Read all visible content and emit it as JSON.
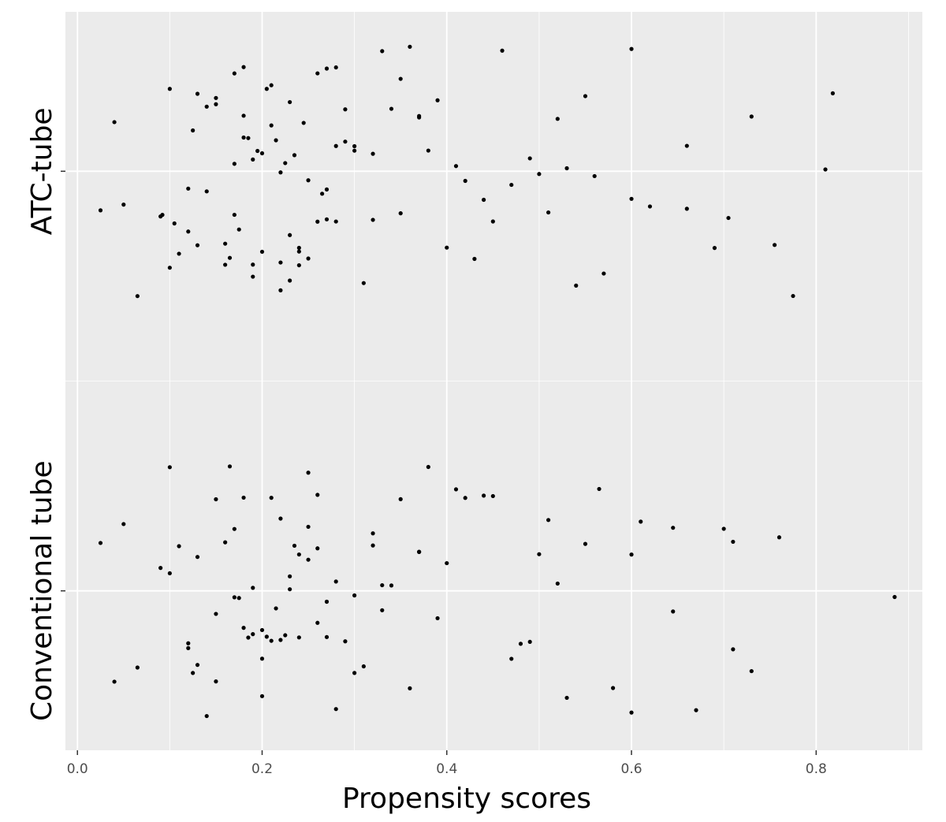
{
  "chart_data": {
    "type": "strip",
    "x_label": "Propensity scores",
    "xlim": [
      -0.013,
      0.915
    ],
    "xticks": [
      {
        "value": 0,
        "label": "0.0"
      },
      0.2,
      0.4,
      0.6,
      0.8
    ],
    "xminor": [
      0.1,
      0.3,
      0.5,
      0.7,
      0.9
    ],
    "grid": true,
    "series": [
      {
        "name": "ATC-tube",
        "color": "#000000",
        "values": [
          0.025,
          0.04,
          0.05,
          0.065,
          0.09,
          0.092,
          0.1,
          0.1,
          0.105,
          0.11,
          0.12,
          0.125,
          0.13,
          0.13,
          0.14,
          0.15,
          0.15,
          0.16,
          0.16,
          0.165,
          0.17,
          0.17,
          0.175,
          0.18,
          0.18,
          0.185,
          0.19,
          0.19,
          0.195,
          0.2,
          0.2,
          0.205,
          0.21,
          0.21,
          0.215,
          0.22,
          0.22,
          0.225,
          0.23,
          0.23,
          0.235,
          0.24,
          0.24,
          0.245,
          0.25,
          0.25,
          0.26,
          0.26,
          0.265,
          0.27,
          0.27,
          0.28,
          0.28,
          0.29,
          0.29,
          0.3,
          0.3,
          0.31,
          0.32,
          0.33,
          0.34,
          0.35,
          0.35,
          0.36,
          0.37,
          0.37,
          0.38,
          0.39,
          0.4,
          0.41,
          0.42,
          0.43,
          0.44,
          0.45,
          0.46,
          0.47,
          0.49,
          0.5,
          0.51,
          0.52,
          0.53,
          0.54,
          0.55,
          0.56,
          0.57,
          0.6,
          0.6,
          0.62,
          0.66,
          0.66,
          0.69,
          0.705,
          0.73,
          0.755,
          0.775,
          0.81,
          0.818,
          0.12,
          0.17,
          0.22,
          0.27,
          0.32,
          0.18,
          0.23,
          0.28,
          0.14,
          0.19,
          0.24
        ]
      },
      {
        "name": "Conventional tube",
        "color": "#000000",
        "values": [
          0.025,
          0.04,
          0.05,
          0.065,
          0.09,
          0.1,
          0.1,
          0.11,
          0.12,
          0.125,
          0.13,
          0.14,
          0.15,
          0.15,
          0.16,
          0.165,
          0.17,
          0.175,
          0.18,
          0.185,
          0.19,
          0.19,
          0.2,
          0.2,
          0.205,
          0.21,
          0.215,
          0.22,
          0.225,
          0.23,
          0.235,
          0.24,
          0.24,
          0.25,
          0.25,
          0.26,
          0.26,
          0.27,
          0.28,
          0.29,
          0.3,
          0.3,
          0.31,
          0.32,
          0.33,
          0.34,
          0.35,
          0.36,
          0.37,
          0.38,
          0.39,
          0.4,
          0.41,
          0.42,
          0.44,
          0.45,
          0.47,
          0.48,
          0.49,
          0.5,
          0.51,
          0.52,
          0.53,
          0.55,
          0.565,
          0.58,
          0.6,
          0.6,
          0.61,
          0.645,
          0.645,
          0.67,
          0.7,
          0.71,
          0.71,
          0.73,
          0.76,
          0.885,
          0.12,
          0.17,
          0.22,
          0.27,
          0.32,
          0.15,
          0.2,
          0.25,
          0.18,
          0.23,
          0.28,
          0.13,
          0.21,
          0.26,
          0.33,
          0.37
        ]
      }
    ]
  }
}
